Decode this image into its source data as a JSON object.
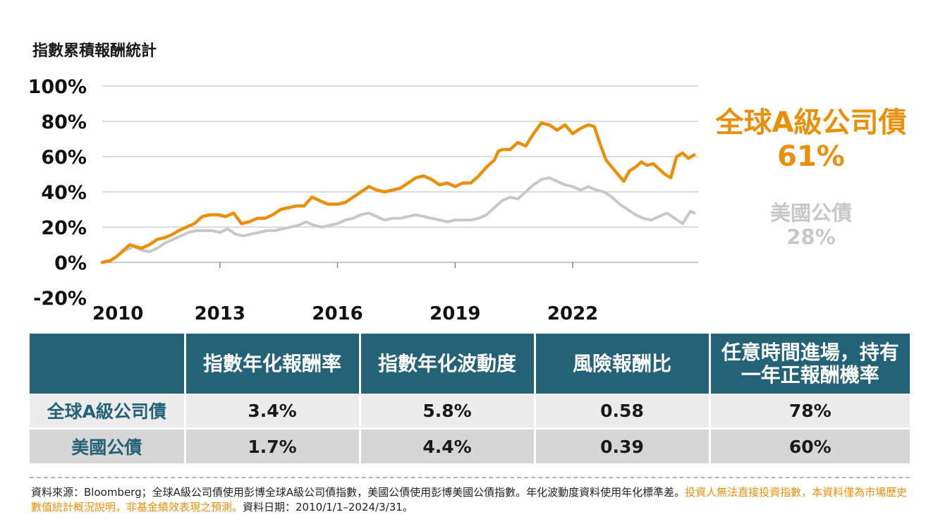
{
  "chart": {
    "title": "指數累積報酬統計"
  },
  "labels": {
    "global": {
      "name": "全球A級公司債",
      "value": "61%"
    },
    "us": {
      "name": "美國公債",
      "value": "28%"
    }
  },
  "table": {
    "headers": [
      "",
      "指數年化報酬率",
      "指數年化波動度",
      "風險報酬比",
      "任意時間進場，持有一年正報酬機率"
    ],
    "rows": [
      {
        "name": "全球A級公司債",
        "values": [
          "3.4%",
          "5.8%",
          "0.58",
          "78%"
        ]
      },
      {
        "name": "美國公債",
        "values": [
          "1.7%",
          "4.4%",
          "0.39",
          "60%"
        ]
      }
    ]
  },
  "footnote": {
    "text1": "資料來源：Bloomberg；全球A級公司債使用彭博全球A級公司債指數，美國公債使用彭博美國公債指數。年化波動度資料使用年化標準差。",
    "text2": "投資人無法直接投資指數，本資料僅為市場歷史數值統計概況說明，非基金績效表現之預測。",
    "text3": "資料日期：2010/1/1–2024/3/31。"
  },
  "colors": {
    "global": "#E8900C",
    "us": "#C8C8C8",
    "header": "#246278",
    "grid": "#c8c8c8"
  },
  "chart_data": {
    "type": "line",
    "title": "指數累積報酬統計",
    "xlabel": "",
    "ylabel": "",
    "ylim": [
      -20,
      100
    ],
    "yticks": [
      "-20%",
      "0%",
      "20%",
      "40%",
      "60%",
      "80%",
      "100%"
    ],
    "ytick_values": [
      -20,
      0,
      20,
      40,
      60,
      80,
      100
    ],
    "xticks": [
      "2010",
      "2013",
      "2016",
      "2019",
      "2022"
    ],
    "xtick_values": [
      2010,
      2013,
      2016,
      2019,
      2022
    ],
    "xlim": [
      2010,
      2025.2
    ],
    "grid": true,
    "series": [
      {
        "name": "全球A級公司債",
        "end_label": "61%",
        "x": [
          2010.0,
          2010.2,
          2010.35,
          2010.5,
          2010.7,
          2010.85,
          2011.0,
          2011.2,
          2011.4,
          2011.6,
          2011.8,
          2011.95,
          2012.15,
          2012.35,
          2012.55,
          2012.75,
          2012.95,
          2013.15,
          2013.35,
          2013.55,
          2013.75,
          2013.95,
          2014.15,
          2014.35,
          2014.55,
          2014.75,
          2014.95,
          2015.15,
          2015.35,
          2015.55,
          2015.75,
          2016.0,
          2016.2,
          2016.4,
          2016.6,
          2016.8,
          2017.0,
          2017.2,
          2017.4,
          2017.6,
          2017.8,
          2018.0,
          2018.2,
          2018.4,
          2018.6,
          2018.8,
          2019.0,
          2019.2,
          2019.4,
          2019.6,
          2019.8,
          2020.0,
          2020.1,
          2020.2,
          2020.4,
          2020.6,
          2020.8,
          2021.0,
          2021.2,
          2021.4,
          2021.6,
          2021.8,
          2022.0,
          2022.2,
          2022.4,
          2022.55,
          2022.7,
          2022.85,
          2023.0,
          2023.15,
          2023.3,
          2023.45,
          2023.6,
          2023.75,
          2023.9,
          2024.05,
          2024.2,
          2024.35,
          2024.5,
          2024.65,
          2024.8,
          2024.95,
          2025.1
        ],
        "values": [
          0,
          1,
          3,
          6,
          10,
          9,
          8,
          10,
          13,
          14,
          16,
          18,
          20,
          22,
          26,
          27,
          27,
          26,
          28,
          22,
          23,
          25,
          25,
          27,
          30,
          31,
          32,
          32,
          37,
          35,
          33,
          33,
          34,
          37,
          40,
          43,
          41,
          40,
          41,
          42,
          45,
          48,
          49,
          47,
          44,
          45,
          43,
          45,
          45,
          49,
          54,
          58,
          63,
          64,
          64,
          68,
          66,
          73,
          79,
          78,
          75,
          78,
          73,
          76,
          78,
          77,
          67,
          58,
          54,
          50,
          46,
          52,
          54,
          57,
          55,
          56,
          53,
          50,
          48,
          60,
          62,
          59,
          61
        ]
      },
      {
        "name": "美國公債",
        "end_label": "28%",
        "x": [
          2010.0,
          2010.2,
          2010.4,
          2010.6,
          2010.8,
          2011.0,
          2011.2,
          2011.4,
          2011.6,
          2011.8,
          2012.0,
          2012.2,
          2012.4,
          2012.6,
          2012.8,
          2013.0,
          2013.2,
          2013.4,
          2013.6,
          2013.8,
          2014.0,
          2014.2,
          2014.4,
          2014.6,
          2014.8,
          2015.0,
          2015.2,
          2015.4,
          2015.6,
          2015.8,
          2016.0,
          2016.2,
          2016.4,
          2016.6,
          2016.8,
          2017.0,
          2017.2,
          2017.4,
          2017.6,
          2017.8,
          2018.0,
          2018.2,
          2018.4,
          2018.6,
          2018.8,
          2019.0,
          2019.2,
          2019.4,
          2019.6,
          2019.8,
          2020.0,
          2020.2,
          2020.4,
          2020.6,
          2020.8,
          2021.0,
          2021.2,
          2021.4,
          2021.6,
          2021.8,
          2022.0,
          2022.2,
          2022.4,
          2022.6,
          2022.8,
          2023.0,
          2023.2,
          2023.4,
          2023.6,
          2023.8,
          2024.0,
          2024.2,
          2024.4,
          2024.6,
          2024.8,
          2025.0,
          2025.1
        ],
        "values": [
          0,
          1,
          4,
          7,
          9,
          7,
          6,
          8,
          11,
          13,
          15,
          17,
          18,
          18,
          18,
          17,
          19,
          16,
          15,
          16,
          17,
          18,
          18,
          19,
          20,
          21,
          23,
          21,
          20,
          21,
          22,
          24,
          25,
          27,
          28,
          26,
          24,
          25,
          25,
          26,
          27,
          26,
          25,
          24,
          23,
          24,
          24,
          24,
          25,
          27,
          31,
          35,
          37,
          36,
          40,
          44,
          47,
          48,
          46,
          44,
          43,
          41,
          43,
          41,
          40,
          37,
          33,
          30,
          27,
          25,
          24,
          26,
          28,
          25,
          22,
          29,
          28
        ]
      }
    ]
  }
}
